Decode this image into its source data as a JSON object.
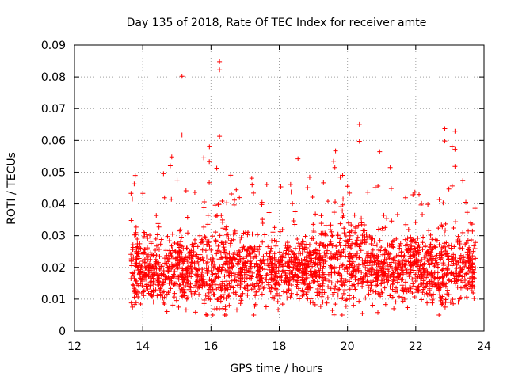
{
  "chart_data": {
    "type": "scatter",
    "title": "Day 135 of 2018, Rate Of TEC Index for receiver amte",
    "xlabel": "GPS time / hours",
    "ylabel": "ROTI / TECUs",
    "xlim": [
      12,
      24
    ],
    "ylim": [
      0,
      0.09
    ],
    "xticks": [
      12,
      14,
      16,
      18,
      20,
      22,
      24
    ],
    "xtick_labels": [
      "12",
      "14",
      "16",
      "18",
      "20",
      "22",
      "24"
    ],
    "yticks": [
      0,
      0.01,
      0.02,
      0.03,
      0.04,
      0.05,
      0.06,
      0.07,
      0.08,
      0.09
    ],
    "ytick_labels": [
      "0",
      "0.01",
      "0.02",
      "0.03",
      "0.04",
      "0.05",
      "0.06",
      "0.07",
      "0.08",
      "0.09"
    ],
    "grid": true,
    "marker": "+",
    "color": "#ff0000",
    "data_x_range": [
      13.65,
      23.75
    ],
    "bulk_y_range": [
      0.005,
      0.04
    ],
    "series": [
      {
        "name": "ROTI",
        "notable_points": [
          {
            "x": 15.15,
            "y": 0.0802
          },
          {
            "x": 16.25,
            "y": 0.0848
          },
          {
            "x": 16.25,
            "y": 0.0822
          },
          {
            "x": 15.15,
            "y": 0.0617
          },
          {
            "x": 16.25,
            "y": 0.0613
          },
          {
            "x": 20.35,
            "y": 0.0651
          },
          {
            "x": 20.35,
            "y": 0.0597
          },
          {
            "x": 22.85,
            "y": 0.0637
          },
          {
            "x": 23.15,
            "y": 0.0629
          },
          {
            "x": 22.85,
            "y": 0.0598
          },
          {
            "x": 23.15,
            "y": 0.0572
          },
          {
            "x": 23.15,
            "y": 0.0518
          },
          {
            "x": 14.85,
            "y": 0.0548
          },
          {
            "x": 19.65,
            "y": 0.0567
          },
          {
            "x": 18.55,
            "y": 0.0542
          },
          {
            "x": 15.95,
            "y": 0.0533
          },
          {
            "x": 13.75,
            "y": 0.0463
          },
          {
            "x": 13.7,
            "y": 0.0075
          }
        ]
      }
    ]
  }
}
